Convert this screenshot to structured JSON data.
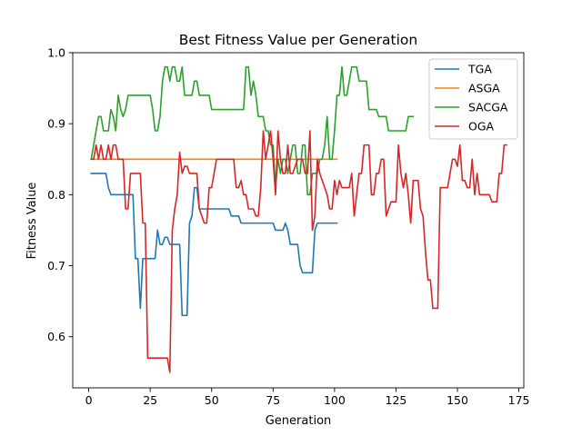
{
  "chart_data": {
    "type": "line",
    "title": "Best Fitness Value per Generation",
    "xlabel": "Generation",
    "ylabel": "Fitness Value",
    "xlim": [
      -6.5,
      177
    ],
    "ylim": [
      0.528,
      1.0
    ],
    "xticks": [
      0,
      25,
      50,
      75,
      100,
      125,
      150,
      175
    ],
    "yticks": [
      0.6,
      0.7,
      0.8,
      0.9,
      1.0
    ],
    "ytick_labels": [
      "0.6",
      "0.7",
      "0.8",
      "0.9",
      "1.0"
    ],
    "grid": false,
    "legend_position": "top-right",
    "series": [
      {
        "name": "TGA",
        "color": "#1f77b4",
        "x": [
          1,
          2,
          3,
          4,
          5,
          6,
          7,
          8,
          9,
          10,
          11,
          12,
          13,
          14,
          15,
          16,
          17,
          18,
          19,
          20,
          21,
          22,
          23,
          24,
          25,
          26,
          27,
          28,
          29,
          30,
          31,
          32,
          33,
          34,
          35,
          36,
          37,
          38,
          39,
          40,
          41,
          42,
          43,
          44,
          45,
          46,
          47,
          48,
          49,
          50,
          51,
          52,
          53,
          54,
          55,
          56,
          57,
          58,
          59,
          60,
          61,
          62,
          63,
          64,
          65,
          66,
          67,
          68,
          69,
          70,
          71,
          72,
          73,
          74,
          75,
          76,
          77,
          78,
          79,
          80,
          81,
          82,
          83,
          84,
          85,
          86,
          87,
          88,
          89,
          90,
          91,
          92,
          93,
          94,
          95,
          96,
          97,
          98,
          99,
          100,
          101
        ],
        "y": [
          0.83,
          0.83,
          0.83,
          0.83,
          0.83,
          0.83,
          0.83,
          0.81,
          0.8,
          0.8,
          0.8,
          0.8,
          0.8,
          0.8,
          0.8,
          0.8,
          0.8,
          0.8,
          0.71,
          0.71,
          0.64,
          0.71,
          0.71,
          0.71,
          0.71,
          0.71,
          0.71,
          0.75,
          0.73,
          0.73,
          0.74,
          0.74,
          0.73,
          0.73,
          0.73,
          0.73,
          0.73,
          0.63,
          0.63,
          0.63,
          0.76,
          0.77,
          0.81,
          0.81,
          0.78,
          0.78,
          0.78,
          0.78,
          0.78,
          0.78,
          0.78,
          0.78,
          0.78,
          0.78,
          0.78,
          0.78,
          0.78,
          0.77,
          0.77,
          0.77,
          0.77,
          0.76,
          0.76,
          0.76,
          0.76,
          0.76,
          0.76,
          0.76,
          0.76,
          0.76,
          0.76,
          0.76,
          0.76,
          0.76,
          0.76,
          0.75,
          0.75,
          0.75,
          0.75,
          0.76,
          0.75,
          0.73,
          0.73,
          0.73,
          0.73,
          0.7,
          0.69,
          0.69,
          0.69,
          0.69,
          0.69,
          0.75,
          0.76,
          0.76,
          0.76,
          0.76,
          0.76,
          0.76,
          0.76,
          0.76,
          0.76
        ]
      },
      {
        "name": "ASGA",
        "color": "#ff7f0e",
        "x": [
          1,
          101
        ],
        "y": [
          0.85,
          0.85
        ]
      },
      {
        "name": "SACGA",
        "color": "#2ca02c",
        "x": [
          1,
          2,
          3,
          4,
          5,
          6,
          7,
          8,
          9,
          10,
          11,
          12,
          13,
          14,
          15,
          16,
          17,
          18,
          19,
          20,
          21,
          22,
          23,
          24,
          25,
          26,
          27,
          28,
          29,
          30,
          31,
          32,
          33,
          34,
          35,
          36,
          37,
          38,
          39,
          40,
          41,
          42,
          43,
          44,
          45,
          46,
          47,
          48,
          49,
          50,
          51,
          52,
          53,
          54,
          55,
          56,
          57,
          58,
          59,
          60,
          61,
          62,
          63,
          64,
          65,
          66,
          67,
          68,
          69,
          70,
          71,
          72,
          73,
          74,
          75,
          76,
          77,
          78,
          79,
          80,
          81,
          82,
          83,
          84,
          85,
          86,
          87,
          88,
          89,
          90,
          91,
          92,
          93,
          94,
          95,
          96,
          97,
          98,
          99,
          100,
          101,
          102,
          103,
          104,
          105,
          106,
          107,
          108,
          109,
          110,
          111,
          112,
          113,
          114,
          115,
          116,
          117,
          118,
          119,
          120,
          121,
          122,
          123,
          124,
          125,
          126,
          127,
          128,
          129,
          130,
          131,
          132
        ],
        "y": [
          0.85,
          0.87,
          0.89,
          0.91,
          0.91,
          0.89,
          0.89,
          0.89,
          0.92,
          0.91,
          0.89,
          0.94,
          0.92,
          0.91,
          0.92,
          0.94,
          0.94,
          0.94,
          0.94,
          0.94,
          0.94,
          0.94,
          0.94,
          0.94,
          0.94,
          0.92,
          0.89,
          0.89,
          0.91,
          0.96,
          0.98,
          0.98,
          0.96,
          0.98,
          0.98,
          0.96,
          0.96,
          0.98,
          0.94,
          0.94,
          0.94,
          0.94,
          0.96,
          0.96,
          0.94,
          0.94,
          0.94,
          0.94,
          0.94,
          0.92,
          0.92,
          0.92,
          0.92,
          0.92,
          0.92,
          0.92,
          0.92,
          0.92,
          0.92,
          0.92,
          0.92,
          0.92,
          0.92,
          0.98,
          0.98,
          0.94,
          0.96,
          0.94,
          0.91,
          0.91,
          0.91,
          0.89,
          0.89,
          0.87,
          0.87,
          0.81,
          0.85,
          0.83,
          0.85,
          0.85,
          0.83,
          0.85,
          0.87,
          0.87,
          0.83,
          0.83,
          0.87,
          0.87,
          0.8,
          0.8,
          0.83,
          0.83,
          0.83,
          0.85,
          0.85,
          0.87,
          0.91,
          0.85,
          0.85,
          0.89,
          0.94,
          0.94,
          0.98,
          0.94,
          0.94,
          0.96,
          0.98,
          0.98,
          0.98,
          0.96,
          0.96,
          0.96,
          0.96,
          0.92,
          0.92,
          0.92,
          0.92,
          0.91,
          0.91,
          0.91,
          0.91,
          0.89,
          0.89,
          0.89,
          0.89,
          0.89,
          0.89,
          0.89,
          0.89,
          0.91,
          0.91,
          0.91
        ]
      },
      {
        "name": "OGA",
        "color": "#d62728",
        "x": [
          1,
          2,
          3,
          4,
          5,
          6,
          7,
          8,
          9,
          10,
          11,
          12,
          13,
          14,
          15,
          16,
          17,
          18,
          19,
          20,
          21,
          22,
          23,
          24,
          25,
          26,
          27,
          28,
          29,
          30,
          31,
          32,
          33,
          34,
          35,
          36,
          37,
          38,
          39,
          40,
          41,
          42,
          43,
          44,
          45,
          46,
          47,
          48,
          49,
          50,
          51,
          52,
          53,
          54,
          55,
          56,
          57,
          58,
          59,
          60,
          61,
          62,
          63,
          64,
          65,
          66,
          67,
          68,
          69,
          70,
          71,
          72,
          73,
          74,
          75,
          76,
          77,
          78,
          79,
          80,
          81,
          82,
          83,
          84,
          85,
          86,
          87,
          88,
          89,
          90,
          91,
          92,
          93,
          94,
          95,
          96,
          97,
          98,
          99,
          100,
          101,
          102,
          103,
          104,
          105,
          106,
          107,
          108,
          109,
          110,
          111,
          112,
          113,
          114,
          115,
          116,
          117,
          118,
          119,
          120,
          121,
          122,
          123,
          124,
          125,
          126,
          127,
          128,
          129,
          130,
          131,
          132,
          133,
          134,
          135,
          136,
          137,
          138,
          139,
          140,
          141,
          142,
          143,
          144,
          145,
          146,
          147,
          148,
          149,
          150,
          151,
          152,
          153,
          154,
          155,
          156,
          157,
          158,
          159,
          160,
          161,
          162,
          163,
          164,
          165,
          166,
          167,
          168,
          169,
          170
        ],
        "y": [
          0.85,
          0.85,
          0.87,
          0.85,
          0.87,
          0.85,
          0.85,
          0.87,
          0.85,
          0.87,
          0.87,
          0.85,
          0.85,
          0.85,
          0.78,
          0.78,
          0.83,
          0.83,
          0.83,
          0.83,
          0.83,
          0.76,
          0.76,
          0.57,
          0.57,
          0.57,
          0.57,
          0.57,
          0.57,
          0.57,
          0.57,
          0.57,
          0.55,
          0.75,
          0.78,
          0.8,
          0.86,
          0.83,
          0.84,
          0.84,
          0.83,
          0.83,
          0.83,
          0.83,
          0.78,
          0.77,
          0.76,
          0.76,
          0.81,
          0.81,
          0.83,
          0.85,
          0.85,
          0.85,
          0.85,
          0.85,
          0.85,
          0.85,
          0.85,
          0.81,
          0.81,
          0.82,
          0.8,
          0.8,
          0.78,
          0.78,
          0.78,
          0.77,
          0.77,
          0.81,
          0.89,
          0.85,
          0.87,
          0.89,
          0.85,
          0.8,
          0.89,
          0.85,
          0.83,
          0.83,
          0.87,
          0.83,
          0.83,
          0.84,
          0.85,
          0.85,
          0.85,
          0.83,
          0.83,
          0.89,
          0.75,
          0.77,
          0.85,
          0.83,
          0.82,
          0.81,
          0.8,
          0.78,
          0.78,
          0.82,
          0.8,
          0.82,
          0.81,
          0.81,
          0.81,
          0.81,
          0.83,
          0.77,
          0.8,
          0.83,
          0.83,
          0.87,
          0.87,
          0.87,
          0.8,
          0.8,
          0.83,
          0.83,
          0.85,
          0.85,
          0.77,
          0.78,
          0.79,
          0.79,
          0.79,
          0.87,
          0.83,
          0.81,
          0.83,
          0.8,
          0.76,
          0.82,
          0.82,
          0.82,
          0.78,
          0.77,
          0.72,
          0.68,
          0.68,
          0.64,
          0.64,
          0.64,
          0.81,
          0.81,
          0.81,
          0.81,
          0.83,
          0.85,
          0.85,
          0.84,
          0.87,
          0.82,
          0.82,
          0.81,
          0.81,
          0.85,
          0.8,
          0.83,
          0.8,
          0.8,
          0.8,
          0.8,
          0.8,
          0.79,
          0.79,
          0.79,
          0.83,
          0.83,
          0.87,
          0.87
        ]
      }
    ]
  }
}
